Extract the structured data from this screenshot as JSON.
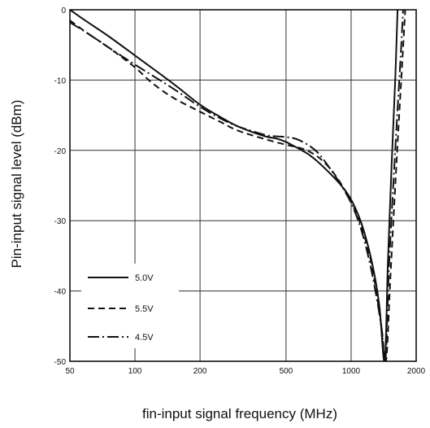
{
  "chart_data": {
    "type": "line",
    "xlabel": "fin-input signal frequency (MHz)",
    "ylabel": "Pin-input signal level (dBm)",
    "x_scale": "log",
    "xlim": [
      50,
      2000
    ],
    "ylim": [
      -50,
      0
    ],
    "grid": true,
    "legend_placement": "bottom-left",
    "x_ticks": [
      {
        "value": 50,
        "label": "50"
      },
      {
        "value": 100,
        "label": "100"
      },
      {
        "value": 200,
        "label": "200"
      },
      {
        "value": 500,
        "label": "500"
      },
      {
        "value": 1000,
        "label": "1000"
      },
      {
        "value": 2000,
        "label": "2000"
      }
    ],
    "y_ticks": [
      {
        "value": 0,
        "label": "0"
      },
      {
        "value": -10,
        "label": "-10"
      },
      {
        "value": -20,
        "label": "-20"
      },
      {
        "value": -30,
        "label": "-30"
      },
      {
        "value": -40,
        "label": "-40"
      },
      {
        "value": -50,
        "label": "-50"
      }
    ],
    "series": [
      {
        "name": "5.0V",
        "dash": "solid",
        "points": [
          [
            50,
            0
          ],
          [
            60,
            -1.7
          ],
          [
            75,
            -3.7
          ],
          [
            100,
            -6.5
          ],
          [
            150,
            -10.5
          ],
          [
            200,
            -13.5
          ],
          [
            250,
            -15.3
          ],
          [
            300,
            -16.6
          ],
          [
            400,
            -18.0
          ],
          [
            450,
            -18.3
          ],
          [
            500,
            -18.8
          ],
          [
            560,
            -19.6
          ],
          [
            630,
            -20.5
          ],
          [
            700,
            -21.6
          ],
          [
            800,
            -23.3
          ],
          [
            900,
            -25.0
          ],
          [
            1000,
            -27.0
          ],
          [
            1120,
            -30.5
          ],
          [
            1250,
            -36.0
          ],
          [
            1350,
            -42.0
          ],
          [
            1430,
            -50.0
          ],
          [
            1480,
            -36.0
          ],
          [
            1540,
            -22.0
          ],
          [
            1600,
            -10.0
          ],
          [
            1640,
            0
          ]
        ]
      },
      {
        "name": "5.5V",
        "dash": "dashed",
        "points": [
          [
            50,
            -1.5
          ],
          [
            60,
            -3.3
          ],
          [
            75,
            -5.3
          ],
          [
            100,
            -8.2
          ],
          [
            120,
            -10.4
          ],
          [
            150,
            -12.5
          ],
          [
            200,
            -14.5
          ],
          [
            250,
            -16.0
          ],
          [
            300,
            -17.2
          ],
          [
            400,
            -18.4
          ],
          [
            500,
            -19.2
          ],
          [
            600,
            -19.8
          ],
          [
            700,
            -20.9
          ],
          [
            800,
            -22.6
          ],
          [
            900,
            -24.8
          ],
          [
            1000,
            -27.3
          ],
          [
            1120,
            -31.0
          ],
          [
            1250,
            -36.5
          ],
          [
            1380,
            -45.0
          ],
          [
            1450,
            -50.0
          ],
          [
            1520,
            -38.0
          ],
          [
            1620,
            -22.0
          ],
          [
            1720,
            -8.0
          ],
          [
            1780,
            0
          ]
        ]
      },
      {
        "name": "4.5V",
        "dash": "dash-dot",
        "points": [
          [
            50,
            -1.8
          ],
          [
            60,
            -3.3
          ],
          [
            75,
            -5.3
          ],
          [
            100,
            -7.8
          ],
          [
            150,
            -11.2
          ],
          [
            200,
            -13.8
          ],
          [
            250,
            -15.5
          ],
          [
            300,
            -16.6
          ],
          [
            400,
            -17.8
          ],
          [
            450,
            -18.0
          ],
          [
            500,
            -18.1
          ],
          [
            560,
            -18.4
          ],
          [
            630,
            -19.2
          ],
          [
            700,
            -20.3
          ],
          [
            800,
            -22.6
          ],
          [
            900,
            -25.0
          ],
          [
            1000,
            -27.5
          ],
          [
            1120,
            -31.5
          ],
          [
            1250,
            -37.5
          ],
          [
            1380,
            -45.0
          ],
          [
            1440,
            -50.0
          ],
          [
            1500,
            -36.0
          ],
          [
            1600,
            -20.0
          ],
          [
            1700,
            -6.0
          ],
          [
            1740,
            0
          ]
        ]
      }
    ]
  }
}
